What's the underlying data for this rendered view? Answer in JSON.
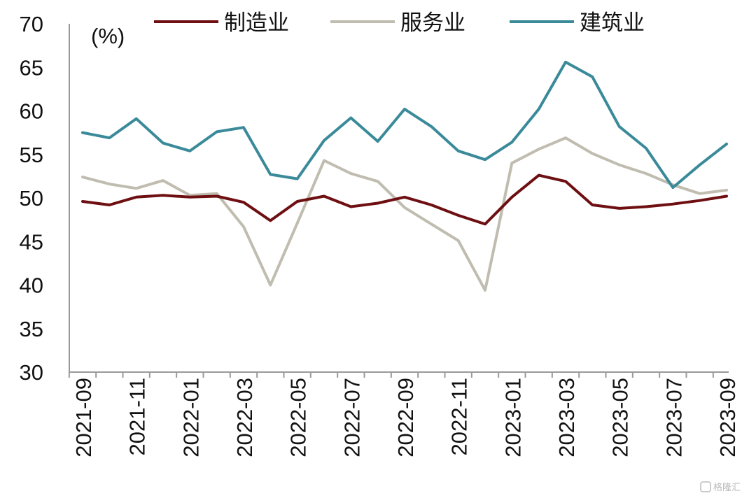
{
  "chart_data": {
    "type": "line",
    "unit_label": "(%)",
    "ylim": [
      30,
      70
    ],
    "y_ticks": [
      30,
      35,
      40,
      45,
      50,
      55,
      60,
      65,
      70
    ],
    "x": [
      "2021-09",
      "2021-10",
      "2021-11",
      "2021-12",
      "2022-01",
      "2022-02",
      "2022-03",
      "2022-04",
      "2022-05",
      "2022-06",
      "2022-07",
      "2022-08",
      "2022-09",
      "2022-10",
      "2022-11",
      "2022-12",
      "2023-01",
      "2023-02",
      "2023-03",
      "2023-04",
      "2023-05",
      "2023-06",
      "2023-07",
      "2023-08",
      "2023-09"
    ],
    "x_tick_labels": [
      "2021-09",
      "2021-11",
      "2022-01",
      "2022-03",
      "2022-05",
      "2022-07",
      "2022-09",
      "2022-11",
      "2023-01",
      "2023-03",
      "2023-05",
      "2023-07",
      "2023-09"
    ],
    "grid": false,
    "legend_position": "top",
    "series": [
      {
        "name": "制造业",
        "color": "#6e0f12",
        "values": [
          49.6,
          49.2,
          50.1,
          50.3,
          50.1,
          50.2,
          49.5,
          47.4,
          49.6,
          50.2,
          49.0,
          49.4,
          50.1,
          49.2,
          48.0,
          47.0,
          50.1,
          52.6,
          51.9,
          49.2,
          48.8,
          49.0,
          49.3,
          49.7,
          50.2
        ]
      },
      {
        "name": "服务业",
        "color": "#c0bdb0",
        "values": [
          52.4,
          51.6,
          51.1,
          52.0,
          50.3,
          50.5,
          46.7,
          40.0,
          47.1,
          54.3,
          52.8,
          51.9,
          48.9,
          47.0,
          45.1,
          39.4,
          54.0,
          55.6,
          56.9,
          55.1,
          53.8,
          52.8,
          51.5,
          50.5,
          50.9
        ]
      },
      {
        "name": "建筑业",
        "color": "#3a8a9a",
        "values": [
          57.5,
          56.9,
          59.1,
          56.3,
          55.4,
          57.6,
          58.1,
          52.7,
          52.2,
          56.6,
          59.2,
          56.5,
          60.2,
          58.2,
          55.4,
          54.4,
          56.4,
          60.2,
          65.6,
          63.9,
          58.2,
          55.7,
          51.2,
          53.8,
          56.2
        ]
      }
    ]
  },
  "watermark": {
    "text": "格隆汇"
  }
}
